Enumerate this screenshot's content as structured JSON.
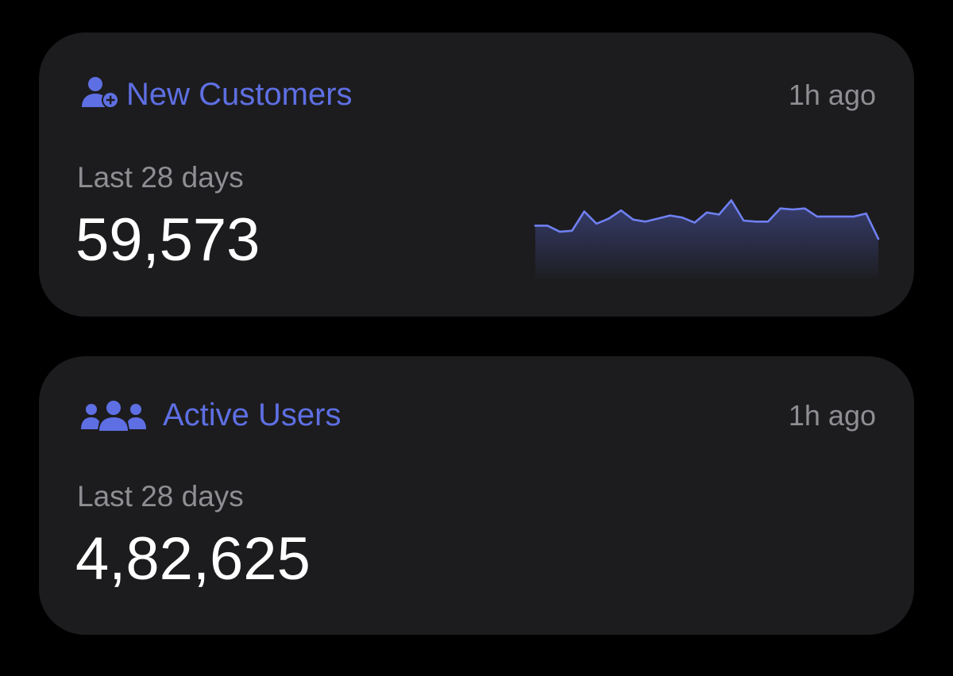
{
  "colors": {
    "background": "#000000",
    "card": "#1c1c1e",
    "accent": "#5e6fe3",
    "secondary_text": "#8e8e93",
    "primary_text": "#ffffff"
  },
  "new_customers": {
    "icon": "user-plus-icon",
    "title": "New Customers",
    "updated": "1h ago",
    "period": "Last 28 days",
    "value": "59,573"
  },
  "active_users": {
    "icon": "users-group-icon",
    "title": "Active Users",
    "updated": "1h ago",
    "period": "Last 28 days",
    "value": "4,82,625"
  },
  "chart_data": {
    "type": "area",
    "values": [
      52,
      52,
      46,
      47,
      66,
      54,
      59,
      67,
      58,
      56,
      59,
      62,
      60,
      55,
      65,
      63,
      77,
      57,
      56,
      56,
      69,
      68,
      69,
      61,
      61,
      61,
      61,
      64,
      39
    ]
  }
}
